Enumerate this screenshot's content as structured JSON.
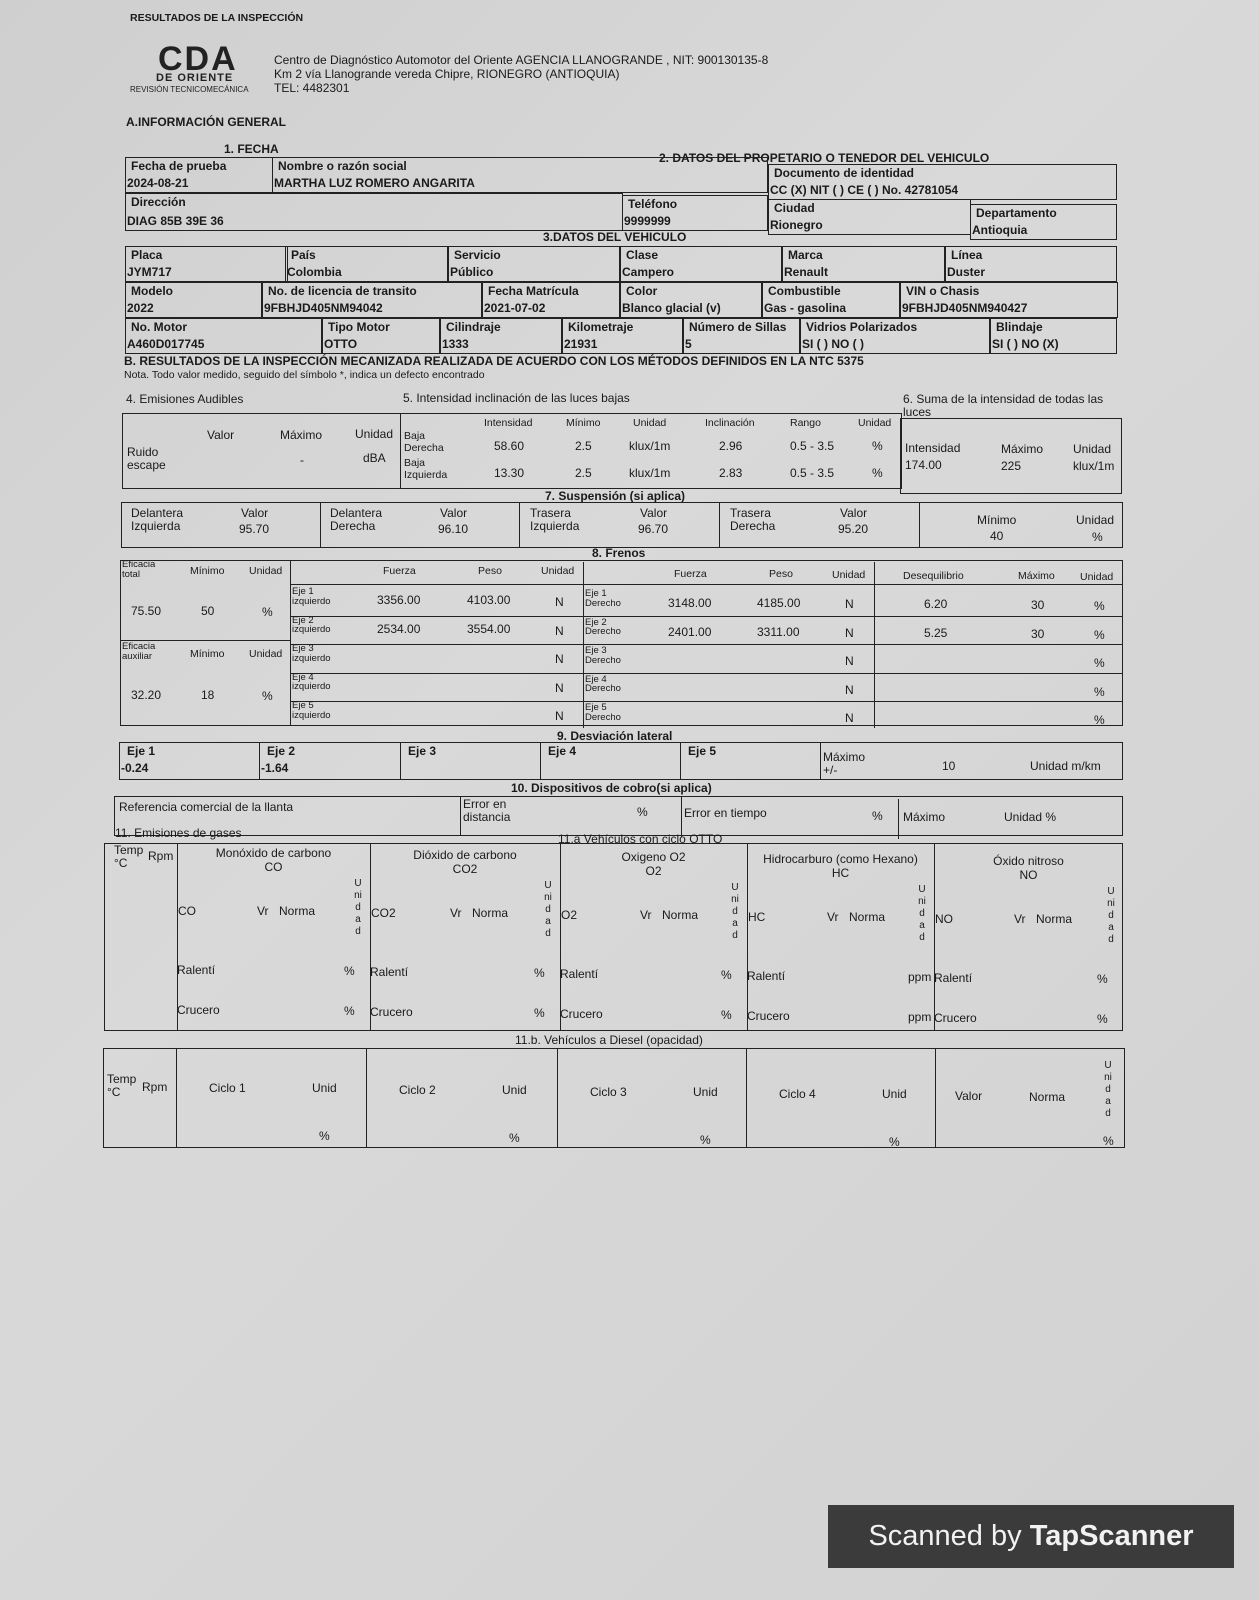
{
  "header": {
    "title": "RESULTADOS DE LA INSPECCIÓN",
    "logo_text": "CDA",
    "logo_sub": "DE ORIENTE",
    "logo_sub2": "REVISIÓN TECNICOMECÁNICA",
    "line1": "Centro de Diagnóstico Automotor del Oriente AGENCIA LLANOGRANDE , NIT: 900130135-8",
    "line2": "Km 2 vía Llanogrande vereda Chipre, RIONEGRO (ANTIOQUIA)",
    "line3": "TEL: 4482301"
  },
  "sectionA": {
    "title": "A.INFORMACIÓN GENERAL",
    "fecha_title": "1. FECHA",
    "owner_title": "2. DATOS DEL PROPETARIO O TENEDOR DEL VEHICULO",
    "vehicle_title": "3.DATOS DEL VEHICULO",
    "fecha_prueba": {
      "label": "Fecha de prueba",
      "value": "2024-08-21"
    },
    "nombre": {
      "label": "Nombre o razón social",
      "value": "MARTHA LUZ ROMERO ANGARITA"
    },
    "documento": {
      "label": "Documento de identidad",
      "value": "CC (X) NIT ( ) CE ( ) No. 42781054"
    },
    "direccion": {
      "label": "Dirección",
      "value": "DIAG 85B 39E 36"
    },
    "telefono": {
      "label": "Teléfono",
      "value": "9999999"
    },
    "ciudad": {
      "label": "Ciudad",
      "value": "Rionegro"
    },
    "departamento": {
      "label": "Departamento",
      "value": "Antioquia"
    },
    "placa": {
      "label": "Placa",
      "value": "JYM717"
    },
    "pais": {
      "label": "País",
      "value": "Colombia"
    },
    "servicio": {
      "label": "Servicio",
      "value": "Público"
    },
    "clase": {
      "label": "Clase",
      "value": "Campero"
    },
    "marca": {
      "label": "Marca",
      "value": "Renault"
    },
    "linea": {
      "label": "Línea",
      "value": "Duster"
    },
    "modelo": {
      "label": "Modelo",
      "value": "2022"
    },
    "licencia": {
      "label": "No. de licencia de transito",
      "value": "9FBHJD405NM94042"
    },
    "matricula": {
      "label": "Fecha Matrícula",
      "value": "2021-07-02"
    },
    "color": {
      "label": "Color",
      "value": "Blanco glacial (v)"
    },
    "combustible": {
      "label": "Combustible",
      "value": "Gas - gasolina"
    },
    "vin": {
      "label": "VIN o Chasis",
      "value": "9FBHJD405NM940427"
    },
    "motor": {
      "label": "No. Motor",
      "value": "A460D017745"
    },
    "tipo_motor": {
      "label": "Tipo Motor",
      "value": "OTTO"
    },
    "cilindraje": {
      "label": "Cilindraje",
      "value": "1333"
    },
    "kilometraje": {
      "label": "Kilometraje",
      "value": "21931"
    },
    "sillas": {
      "label": "Número de Sillas",
      "value": "5"
    },
    "vidrios": {
      "label": "Vidrios Polarizados",
      "value": "SI ( ) NO ( )"
    },
    "blindaje": {
      "label": "Blindaje",
      "value": "SI ( ) NO (X)"
    }
  },
  "sectionB": {
    "title": "B. RESULTADOS DE LA INSPECCIÓN MECANIZADA REALIZADA DE ACUERDO CON LOS MÉTODOS DEFINIDOS EN LA NTC 5375",
    "note": "Nota. Todo valor medido, seguido del símbolo *, indica un defecto encontrado"
  },
  "audibles": {
    "title": "4. Emisiones Audibles",
    "h_valor": "Valor",
    "h_maximo": "Máximo",
    "h_unidad": "Unidad",
    "row_label": "Ruido escape",
    "maximo": "-",
    "unidad": "dBA"
  },
  "luces": {
    "title": "5. Intensidad inclinación de las luces bajas",
    "headers": [
      "Intensidad",
      "Mínimo",
      "Unidad",
      "Inclinación",
      "Rango",
      "Unidad"
    ],
    "rows": [
      {
        "label": "Baja Derecha",
        "intensidad": "58.60",
        "minimo": "2.5",
        "unidad": "klux/1m",
        "inclinacion": "2.96",
        "rango": "0.5 - 3.5",
        "unidad2": "%"
      },
      {
        "label": "Baja Izquierda",
        "intensidad": "13.30",
        "minimo": "2.5",
        "unidad": "klux/1m",
        "inclinacion": "2.83",
        "rango": "0.5 - 3.5",
        "unidad2": "%"
      }
    ]
  },
  "suma_luces": {
    "title": "6. Suma de la intensidad de todas las luces",
    "h_intensidad": "Intensidad",
    "h_maximo": "Máximo",
    "h_unidad": "Unidad",
    "intensidad": "174.00",
    "maximo": "225",
    "unidad": "klux/1m"
  },
  "suspension": {
    "title": "7. Suspensión (si aplica)",
    "value_label": "Valor",
    "items": [
      {
        "label": "Delantera Izquierda",
        "value": "95.70"
      },
      {
        "label": "Delantera Derecha",
        "value": "96.10"
      },
      {
        "label": "Trasera Izquierda",
        "value": "96.70"
      },
      {
        "label": "Trasera Derecha",
        "value": "95.20"
      }
    ],
    "h_minimo": "Mínimo",
    "minimo": "40",
    "h_unidad": "Unidad",
    "unidad": "%"
  },
  "frenos": {
    "title": "8. Frenos",
    "h_fuerza": "Fuerza",
    "h_peso": "Peso",
    "h_unidad": "Unidad",
    "h_deseq": "Desequilibrio",
    "h_maximo": "Máximo",
    "h_minimo": "Mínimo",
    "eficacia_total": {
      "label": "Eficacia total",
      "value": "75.50",
      "minimo": "50",
      "unidad": "%"
    },
    "eficacia_aux": {
      "label": "Eficacia auxiliar",
      "value": "32.20",
      "minimo": "18",
      "unidad": "%"
    },
    "ejes": [
      {
        "izq": "Eje 1 izquierdo",
        "fi": "3356.00",
        "pi": "4103.00",
        "der": "Eje 1 Derecho",
        "fd": "3148.00",
        "pd": "4185.00",
        "deseq": "6.20",
        "max": "30"
      },
      {
        "izq": "Eje 2 izquierdo",
        "fi": "2534.00",
        "pi": "3554.00",
        "der": "Eje 2 Derecho",
        "fd": "2401.00",
        "pd": "3311.00",
        "deseq": "5.25",
        "max": "30"
      },
      {
        "izq": "Eje 3 izquierdo",
        "fi": "",
        "pi": "",
        "der": "Eje 3 Derecho",
        "fd": "",
        "pd": "",
        "deseq": "",
        "max": ""
      },
      {
        "izq": "Eje 4 izquierdo",
        "fi": "",
        "pi": "",
        "der": "Eje 4 Derecho",
        "fd": "",
        "pd": "",
        "deseq": "",
        "max": ""
      },
      {
        "izq": "Eje 5 izquierdo",
        "fi": "",
        "pi": "",
        "der": "Eje 5 Derecho",
        "fd": "",
        "pd": "",
        "deseq": "",
        "max": ""
      }
    ],
    "unit_n": "N",
    "unit_pct": "%"
  },
  "desviacion": {
    "title": "9. Desviación lateral",
    "ejes": [
      {
        "label": "Eje 1",
        "value": "-0.24"
      },
      {
        "label": "Eje 2",
        "value": "-1.64"
      },
      {
        "label": "Eje 3",
        "value": ""
      },
      {
        "label": "Eje 4",
        "value": ""
      },
      {
        "label": "Eje 5",
        "value": ""
      }
    ],
    "h_maximo": "Máximo +/-",
    "maximo": "10",
    "unidad": "Unidad m/km"
  },
  "cobro": {
    "title": "10. Dispositivos de cobro(si aplica)",
    "referencia": "Referencia comercial de la llanta",
    "error_distancia": "Error en distancia",
    "pct": "%",
    "error_tiempo": "Error en tiempo",
    "maximo": "Máximo",
    "unidad": "Unidad %"
  },
  "gases": {
    "title": "11. Emisiones de gases",
    "otto_title": "11.a Vehículos con ciclo OTTO",
    "temp": "Temp °C",
    "rpm": "Rpm",
    "vr": "Vr",
    "norma": "Norma",
    "unidad_v": "Unidad",
    "ralenti": "Ralentí",
    "crucero": "Crucero",
    "cols": [
      {
        "name": "Monóxido de carbono",
        "code": "CO",
        "unit": "%"
      },
      {
        "name": "Dióxido de carbono",
        "code": "CO2",
        "unit": "%"
      },
      {
        "name": "Oxigeno O2",
        "code": "O2",
        "unit": "%"
      },
      {
        "name": "Hidrocarburo (como Hexano)",
        "code": "HC",
        "unit": "ppm"
      },
      {
        "name": "Óxido nitroso",
        "code": "NO",
        "unit": "%"
      }
    ]
  },
  "diesel": {
    "title": "11.b. Vehículos a Diesel (opacidad)",
    "temp": "Temp °C",
    "rpm": "Rpm",
    "ciclos": [
      "Ciclo 1",
      "Ciclo 2",
      "Ciclo 3",
      "Ciclo 4"
    ],
    "unid": "Unid",
    "pct": "%",
    "valor": "Valor",
    "norma": "Norma",
    "unidad_v": "Unidad"
  },
  "watermark": {
    "prefix": "Scanned by ",
    "brand": "TapScanner"
  }
}
